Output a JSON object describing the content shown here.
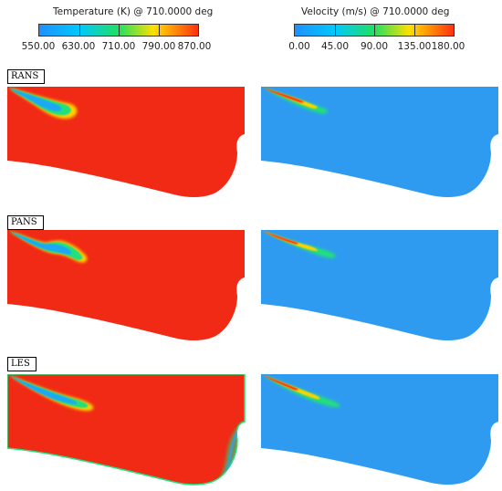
{
  "colorbars": [
    {
      "title": "Temperature (K) @ 710.0000 deg",
      "ticks": [
        "550.00",
        "630.00",
        "710.00",
        "790.00",
        "870.00"
      ],
      "colors": [
        "#1e90ff",
        "#00d0ff",
        "#20e040",
        "#ffe000",
        "#ff3010"
      ]
    },
    {
      "title": "Velocity (m/s) @ 710.0000 deg",
      "ticks": [
        "0.00",
        "45.00",
        "90.00",
        "135.00",
        "180.00"
      ],
      "colors": [
        "#1e90ff",
        "#00d0ff",
        "#20e040",
        "#ffe000",
        "#ff3010"
      ]
    }
  ],
  "rows": [
    {
      "label": "RANS"
    },
    {
      "label": "PANS"
    },
    {
      "label": "LES"
    }
  ],
  "field_colors": {
    "temperature_background": "#f02a14",
    "velocity_background": "#2e9bf0",
    "jet_cold": "#1fa8f5",
    "jet_mid": "#22e07a",
    "jet_edge": "#ffd200",
    "jet_fast": "#ff2a10"
  }
}
